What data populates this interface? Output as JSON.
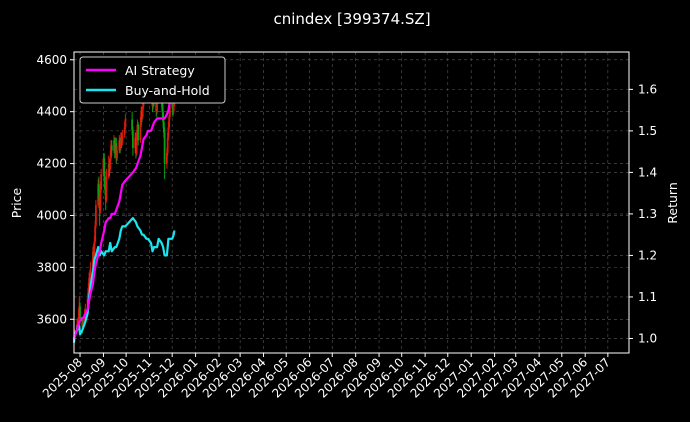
{
  "chart_data": {
    "type": "line",
    "title": "cnindex [399374.SZ]",
    "xlabel": "",
    "ylabel": "Price",
    "y2label": "Return",
    "grid": true,
    "legend_position": "top-left",
    "x_ticks": [
      "2025-08",
      "2025-09",
      "2025-10",
      "2025-11",
      "2025-12",
      "2026-01",
      "2026-02",
      "2026-03",
      "2026-04",
      "2026-05",
      "2026-06",
      "2026-07",
      "2026-08",
      "2026-09",
      "2026-10",
      "2026-11",
      "2026-12",
      "2027-01",
      "2027-02",
      "2027-03",
      "2027-04",
      "2027-05",
      "2027-06",
      "2027-07"
    ],
    "xlim": [
      "2025-07-24",
      "2027-07-29"
    ],
    "ylim": [
      3470,
      4630
    ],
    "y_ticks": [
      3600,
      3800,
      4000,
      4200,
      4400,
      4600
    ],
    "y2lim": [
      0.965,
      1.69
    ],
    "y2_ticks": [
      "1.0",
      "1.1",
      "1.2",
      "1.3",
      "1.4",
      "1.5",
      "1.6"
    ],
    "colors": {
      "up": "#d81b0b",
      "down": "#0aa012",
      "ai": "#ff00ff",
      "bh": "#19e6f0"
    },
    "candles": [
      [
        "2025-07-24",
        3510,
        3532,
        3500,
        3540
      ],
      [
        "2025-07-25",
        3532,
        3555,
        3525,
        3560
      ],
      [
        "2025-07-28",
        3555,
        3580,
        3550,
        3600
      ],
      [
        "2025-07-29",
        3580,
        3570,
        3555,
        3605
      ],
      [
        "2025-07-30",
        3570,
        3610,
        3565,
        3640
      ],
      [
        "2025-07-31",
        3610,
        3650,
        3600,
        3690
      ],
      [
        "2025-08-01",
        3650,
        3600,
        3580,
        3665
      ],
      [
        "2025-08-04",
        3600,
        3570,
        3545,
        3610
      ],
      [
        "2025-08-05",
        3570,
        3580,
        3560,
        3600
      ],
      [
        "2025-08-06",
        3580,
        3600,
        3575,
        3620
      ],
      [
        "2025-08-07",
        3600,
        3620,
        3590,
        3640
      ],
      [
        "2025-08-08",
        3620,
        3640,
        3610,
        3660
      ],
      [
        "2025-08-11",
        3640,
        3680,
        3630,
        3700
      ],
      [
        "2025-08-12",
        3680,
        3720,
        3670,
        3740
      ],
      [
        "2025-08-13",
        3720,
        3760,
        3710,
        3780
      ],
      [
        "2025-08-14",
        3760,
        3740,
        3720,
        3790
      ],
      [
        "2025-08-15",
        3740,
        3800,
        3735,
        3820
      ],
      [
        "2025-08-18",
        3800,
        3860,
        3795,
        3880
      ],
      [
        "2025-08-19",
        3860,
        3840,
        3820,
        3890
      ],
      [
        "2025-08-20",
        3840,
        3900,
        3835,
        3920
      ],
      [
        "2025-08-21",
        3900,
        3960,
        3890,
        3980
      ],
      [
        "2025-08-22",
        3960,
        4040,
        3950,
        4060
      ],
      [
        "2025-08-25",
        4040,
        4120,
        4030,
        4140
      ],
      [
        "2025-08-26",
        4120,
        4080,
        4060,
        4150
      ],
      [
        "2025-08-27",
        4080,
        4020,
        3960,
        4100
      ],
      [
        "2025-08-28",
        4020,
        4100,
        4010,
        4130
      ],
      [
        "2025-08-29",
        4100,
        4160,
        4090,
        4180
      ],
      [
        "2025-09-01",
        4160,
        4220,
        4150,
        4240
      ],
      [
        "2025-09-02",
        4220,
        4150,
        4120,
        4240
      ],
      [
        "2025-09-03",
        4150,
        4100,
        4080,
        4170
      ],
      [
        "2025-09-04",
        4100,
        4060,
        4020,
        4120
      ],
      [
        "2025-09-05",
        4060,
        4150,
        4050,
        4180
      ],
      [
        "2025-09-08",
        4150,
        4200,
        4140,
        4230
      ],
      [
        "2025-09-09",
        4200,
        4180,
        4150,
        4220
      ],
      [
        "2025-09-10",
        4180,
        4220,
        4170,
        4250
      ],
      [
        "2025-09-11",
        4220,
        4270,
        4210,
        4290
      ],
      [
        "2025-09-12",
        4270,
        4250,
        4230,
        4290
      ],
      [
        "2025-09-15",
        4250,
        4290,
        4240,
        4310
      ],
      [
        "2025-09-16",
        4290,
        4240,
        4220,
        4300
      ],
      [
        "2025-09-17",
        4240,
        4280,
        4230,
        4300
      ],
      [
        "2025-09-18",
        4280,
        4220,
        4200,
        4300
      ],
      [
        "2025-09-19",
        4220,
        4250,
        4210,
        4270
      ],
      [
        "2025-09-22",
        4250,
        4290,
        4240,
        4310
      ],
      [
        "2025-09-23",
        4290,
        4260,
        4240,
        4300
      ],
      [
        "2025-09-24",
        4260,
        4300,
        4250,
        4320
      ],
      [
        "2025-09-25",
        4300,
        4280,
        4260,
        4320
      ],
      [
        "2025-09-26",
        4280,
        4310,
        4270,
        4330
      ],
      [
        "2025-09-29",
        4310,
        4340,
        4300,
        4360
      ],
      [
        "2025-09-30",
        4340,
        4370,
        4330,
        4390
      ],
      [
        "2025-10-09",
        4370,
        4330,
        4310,
        4400
      ],
      [
        "2025-10-10",
        4330,
        4260,
        4230,
        4340
      ],
      [
        "2025-10-13",
        4260,
        4300,
        4240,
        4320
      ],
      [
        "2025-10-14",
        4300,
        4240,
        4220,
        4320
      ],
      [
        "2025-10-15",
        4240,
        4310,
        4230,
        4330
      ],
      [
        "2025-10-16",
        4310,
        4350,
        4300,
        4370
      ],
      [
        "2025-10-17",
        4350,
        4290,
        4270,
        4360
      ],
      [
        "2025-10-20",
        4290,
        4350,
        4280,
        4380
      ],
      [
        "2025-10-21",
        4350,
        4400,
        4340,
        4420
      ],
      [
        "2025-10-22",
        4400,
        4380,
        4360,
        4420
      ],
      [
        "2025-10-23",
        4380,
        4420,
        4370,
        4440
      ],
      [
        "2025-10-24",
        4420,
        4460,
        4410,
        4480
      ],
      [
        "2025-10-27",
        4460,
        4500,
        4450,
        4520
      ],
      [
        "2025-10-28",
        4500,
        4480,
        4460,
        4520
      ],
      [
        "2025-10-29",
        4480,
        4530,
        4470,
        4550
      ],
      [
        "2025-10-30",
        4530,
        4560,
        4520,
        4580
      ],
      [
        "2025-10-31",
        4560,
        4540,
        4520,
        4580
      ],
      [
        "2025-11-03",
        4540,
        4500,
        4480,
        4560
      ],
      [
        "2025-11-04",
        4500,
        4460,
        4440,
        4520
      ],
      [
        "2025-11-05",
        4460,
        4420,
        4400,
        4480
      ],
      [
        "2025-11-06",
        4420,
        4460,
        4410,
        4480
      ],
      [
        "2025-11-07",
        4460,
        4440,
        4420,
        4480
      ],
      [
        "2025-11-10",
        4440,
        4400,
        4380,
        4460
      ],
      [
        "2025-11-11",
        4400,
        4440,
        4390,
        4460
      ],
      [
        "2025-11-12",
        4440,
        4480,
        4430,
        4500
      ],
      [
        "2025-11-13",
        4480,
        4520,
        4470,
        4540
      ],
      [
        "2025-11-14",
        4520,
        4480,
        4460,
        4540
      ],
      [
        "2025-11-17",
        4480,
        4440,
        4420,
        4500
      ],
      [
        "2025-11-18",
        4440,
        4400,
        4380,
        4460
      ],
      [
        "2025-11-19",
        4400,
        4360,
        4340,
        4420
      ],
      [
        "2025-11-20",
        4360,
        4320,
        4300,
        4380
      ],
      [
        "2025-11-21",
        4320,
        4200,
        4140,
        4340
      ],
      [
        "2025-11-24",
        4200,
        4240,
        4180,
        4260
      ],
      [
        "2025-11-25",
        4240,
        4300,
        4230,
        4320
      ],
      [
        "2025-11-26",
        4300,
        4340,
        4290,
        4360
      ],
      [
        "2025-11-27",
        4340,
        4380,
        4330,
        4400
      ],
      [
        "2025-11-28",
        4380,
        4420,
        4370,
        4440
      ],
      [
        "2025-12-01",
        4420,
        4440,
        4410,
        4460
      ],
      [
        "2025-12-02",
        4440,
        4400,
        4380,
        4460
      ],
      [
        "2025-12-03",
        4400,
        4430,
        4390,
        4450
      ],
      [
        "2025-12-04",
        4430,
        4470,
        4420,
        4490
      ]
    ],
    "series": [
      {
        "name": "AI Strategy",
        "x": [
          "2025-07-24",
          "2025-07-28",
          "2025-07-31",
          "2025-08-04",
          "2025-08-06",
          "2025-08-08",
          "2025-08-11",
          "2025-08-13",
          "2025-08-15",
          "2025-08-18",
          "2025-08-20",
          "2025-08-22",
          "2025-08-25",
          "2025-08-27",
          "2025-08-29",
          "2025-09-02",
          "2025-09-04",
          "2025-09-08",
          "2025-09-10",
          "2025-09-12",
          "2025-09-16",
          "2025-09-18",
          "2025-09-22",
          "2025-09-24",
          "2025-09-26",
          "2025-09-30",
          "2025-10-10",
          "2025-10-14",
          "2025-10-16",
          "2025-10-20",
          "2025-10-22",
          "2025-10-24",
          "2025-10-28",
          "2025-10-30",
          "2025-11-03",
          "2025-11-05",
          "2025-11-07",
          "2025-11-11",
          "2025-11-13",
          "2025-11-17",
          "2025-11-19",
          "2025-11-21",
          "2025-11-24",
          "2025-11-26",
          "2025-11-28",
          "2025-12-01",
          "2025-12-03",
          "2025-12-04"
        ],
        "values": [
          1.0,
          1.02,
          1.04,
          1.05,
          1.05,
          1.06,
          1.07,
          1.09,
          1.11,
          1.13,
          1.16,
          1.18,
          1.2,
          1.21,
          1.23,
          1.26,
          1.28,
          1.29,
          1.29,
          1.3,
          1.3,
          1.31,
          1.33,
          1.35,
          1.37,
          1.38,
          1.4,
          1.41,
          1.42,
          1.44,
          1.46,
          1.48,
          1.49,
          1.5,
          1.5,
          1.51,
          1.52,
          1.53,
          1.53,
          1.53,
          1.53,
          1.53,
          1.54,
          1.55,
          1.57,
          1.57,
          1.58,
          1.58
        ]
      },
      {
        "name": "Buy-and-Hold",
        "x": [
          "2025-07-24",
          "2025-07-25",
          "2025-07-28",
          "2025-07-29",
          "2025-07-30",
          "2025-07-31",
          "2025-08-01",
          "2025-08-04",
          "2025-08-06",
          "2025-08-08",
          "2025-08-11",
          "2025-08-13",
          "2025-08-15",
          "2025-08-18",
          "2025-08-20",
          "2025-08-22",
          "2025-08-25",
          "2025-08-27",
          "2025-08-29",
          "2025-09-02",
          "2025-09-04",
          "2025-09-08",
          "2025-09-10",
          "2025-09-12",
          "2025-09-16",
          "2025-09-18",
          "2025-09-22",
          "2025-09-24",
          "2025-09-26",
          "2025-09-30",
          "2025-10-10",
          "2025-10-14",
          "2025-10-16",
          "2025-10-20",
          "2025-10-22",
          "2025-10-24",
          "2025-10-28",
          "2025-10-30",
          "2025-11-03",
          "2025-11-05",
          "2025-11-07",
          "2025-11-11",
          "2025-11-13",
          "2025-11-17",
          "2025-11-19",
          "2025-11-21",
          "2025-11-24",
          "2025-11-26",
          "2025-11-28",
          "2025-12-01",
          "2025-12-03",
          "2025-12-04"
        ],
        "values": [
          0.99,
          1.01,
          1.02,
          1.03,
          1.03,
          1.03,
          1.01,
          1.02,
          1.03,
          1.04,
          1.06,
          1.1,
          1.13,
          1.16,
          1.19,
          1.2,
          1.22,
          1.2,
          1.21,
          1.2,
          1.21,
          1.21,
          1.23,
          1.21,
          1.22,
          1.22,
          1.24,
          1.26,
          1.27,
          1.27,
          1.29,
          1.28,
          1.27,
          1.26,
          1.25,
          1.25,
          1.24,
          1.24,
          1.23,
          1.21,
          1.22,
          1.22,
          1.24,
          1.23,
          1.22,
          1.2,
          1.2,
          1.24,
          1.24,
          1.24,
          1.25,
          1.26
        ]
      }
    ]
  }
}
